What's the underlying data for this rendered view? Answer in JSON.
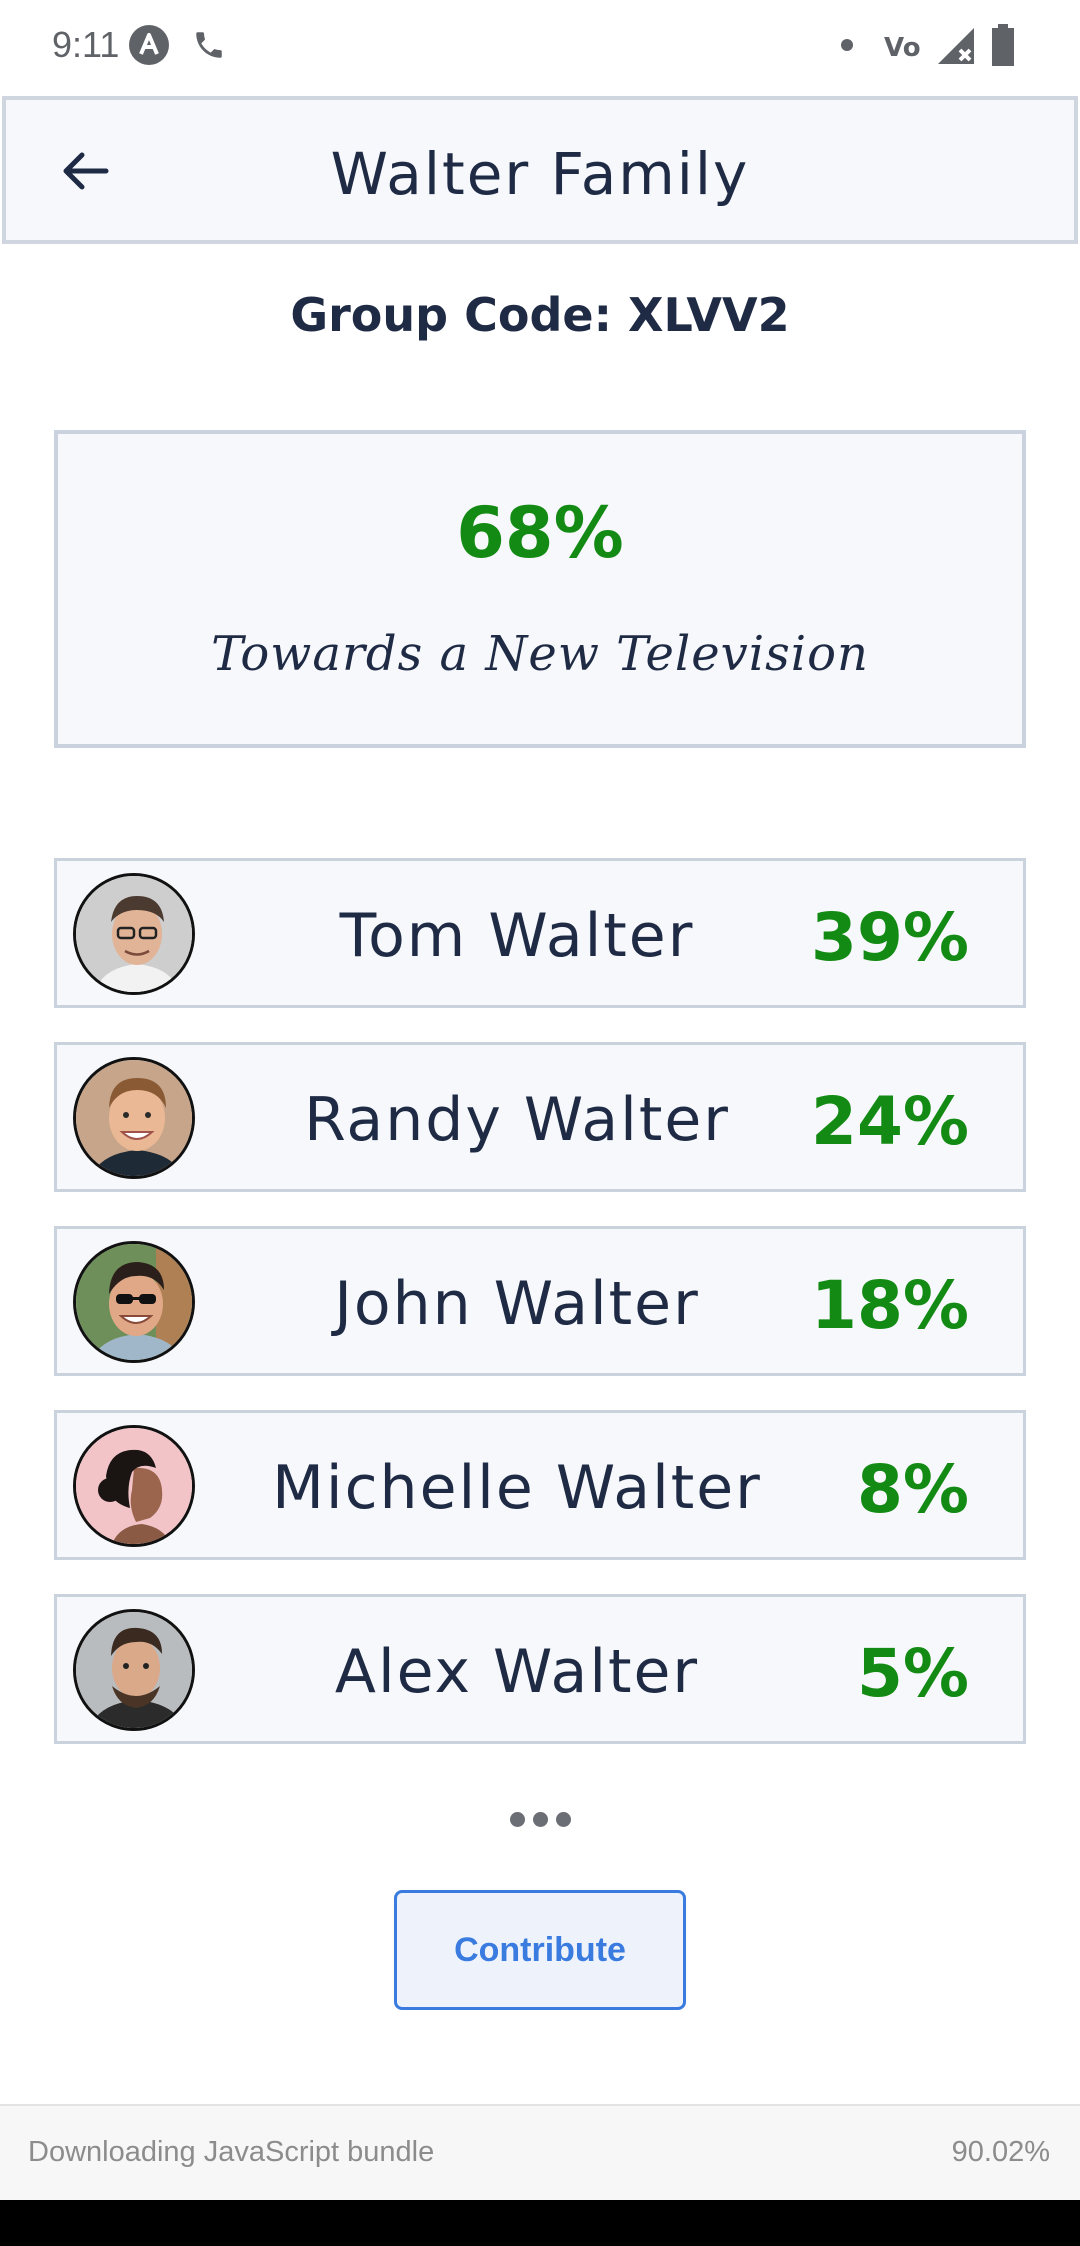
{
  "status_bar": {
    "time": "9:11",
    "icons": [
      "app-a-icon",
      "phone-icon",
      "dot-icon",
      "volte-icon",
      "signal-icon",
      "battery-icon"
    ]
  },
  "header": {
    "title": "Walter Family",
    "back_icon": "arrow-left-icon"
  },
  "group": {
    "code_label": "Group Code: XLVV2"
  },
  "goal": {
    "percent": "68%",
    "description": "Towards a New Television"
  },
  "members": [
    {
      "name": "Tom Walter",
      "percent": "39%"
    },
    {
      "name": "Randy Walter",
      "percent": "24%"
    },
    {
      "name": "John Walter",
      "percent": "18%"
    },
    {
      "name": "Michelle Walter",
      "percent": "8%"
    },
    {
      "name": "Alex Walter",
      "percent": "5%"
    }
  ],
  "actions": {
    "contribute_label": "Contribute"
  },
  "bundle": {
    "message": "Downloading JavaScript bundle",
    "progress": "90.02%"
  },
  "colors": {
    "accent_green": "#138a13",
    "text_navy": "#1f2a44",
    "button_blue": "#3a7be0"
  }
}
